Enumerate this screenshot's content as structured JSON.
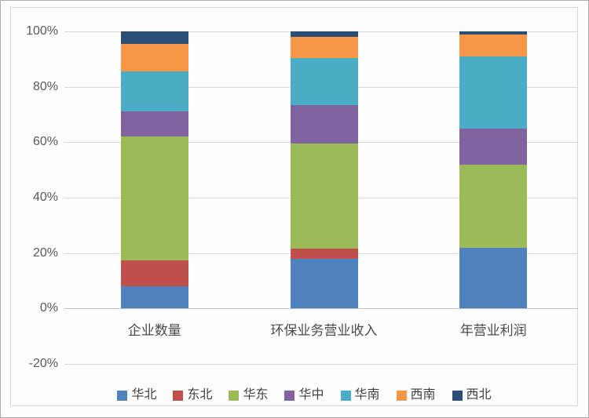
{
  "chart_data": {
    "type": "bar",
    "variant": "stacked-100-percent-column",
    "title": "",
    "xlabel": "",
    "ylabel": "",
    "categories": [
      "企业数量",
      "环保业务营业收入",
      "年营业利润"
    ],
    "series": [
      {
        "name": "华北",
        "color": "#4F81BD",
        "values": [
          8,
          18,
          22
        ]
      },
      {
        "name": "东北",
        "color": "#C0504D",
        "values": [
          9.5,
          3.5,
          0
        ]
      },
      {
        "name": "华东",
        "color": "#9BBB59",
        "values": [
          44.5,
          38,
          30
        ]
      },
      {
        "name": "华中",
        "color": "#8064A2",
        "values": [
          9,
          14,
          13
        ]
      },
      {
        "name": "华南",
        "color": "#4BACC6",
        "values": [
          14.5,
          17,
          26
        ]
      },
      {
        "name": "西南",
        "color": "#F79646",
        "values": [
          10,
          7.5,
          8
        ]
      },
      {
        "name": "西北",
        "color": "#2C4D75",
        "values": [
          4.5,
          2,
          1
        ]
      }
    ],
    "y_axis": {
      "min": -20,
      "max": 100,
      "step": 20,
      "unit": "%",
      "tick_labels": [
        "100%",
        "80%",
        "60%",
        "40%",
        "20%",
        "0%",
        "-20%"
      ]
    },
    "legend_position": "bottom",
    "grid": true
  },
  "style": {
    "gridline_color": "#D9D9D9",
    "zero_line_color": "#BFBFBF",
    "tick_text_color": "#595959",
    "category_text_color": "#4A4A4A",
    "legend_text_color": "#404040",
    "frame_border_color": "#D8D8D8",
    "outer_border_color": "#AEAEAE",
    "background_color": "#FEFEFE"
  }
}
